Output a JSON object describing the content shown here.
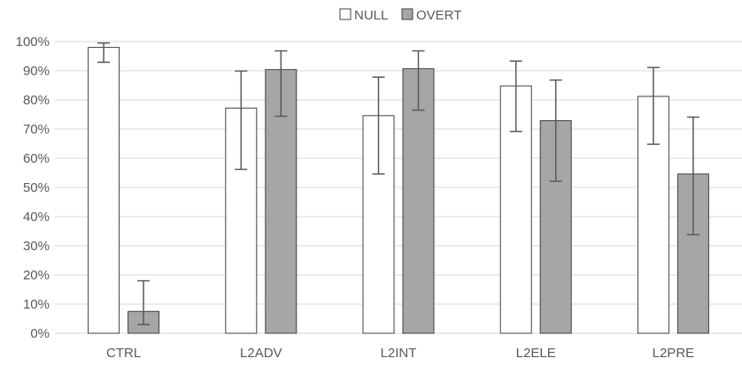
{
  "chart_data": {
    "type": "bar",
    "title": "",
    "xlabel": "",
    "ylabel": "",
    "categories": [
      "CTRL",
      "L2ADV",
      "L2INT",
      "L2ELE",
      "L2PRE"
    ],
    "series": [
      {
        "name": "NULL",
        "color": "#ffffff",
        "stroke": "#404040",
        "values": [
          0.98,
          0.772,
          0.746,
          0.848,
          0.812
        ],
        "error_low": [
          0.929,
          0.562,
          0.546,
          0.692,
          0.648
        ],
        "error_high": [
          0.995,
          0.899,
          0.878,
          0.933,
          0.911
        ]
      },
      {
        "name": "OVERT",
        "color": "#a6a6a6",
        "stroke": "#404040",
        "values": [
          0.075,
          0.904,
          0.907,
          0.729,
          0.546
        ],
        "error_low": [
          0.03,
          0.744,
          0.765,
          0.521,
          0.338
        ],
        "error_high": [
          0.18,
          0.968,
          0.968,
          0.868,
          0.741
        ]
      }
    ],
    "ylim": [
      0,
      1
    ],
    "yticks": [
      0,
      0.1,
      0.2,
      0.3,
      0.4,
      0.5,
      0.6,
      0.7,
      0.8,
      0.9,
      1.0
    ],
    "ytick_labels": [
      "0%",
      "10%",
      "20%",
      "30%",
      "40%",
      "50%",
      "60%",
      "70%",
      "80%",
      "90%",
      "100%"
    ],
    "grid": true,
    "legend_position": "top-right"
  }
}
